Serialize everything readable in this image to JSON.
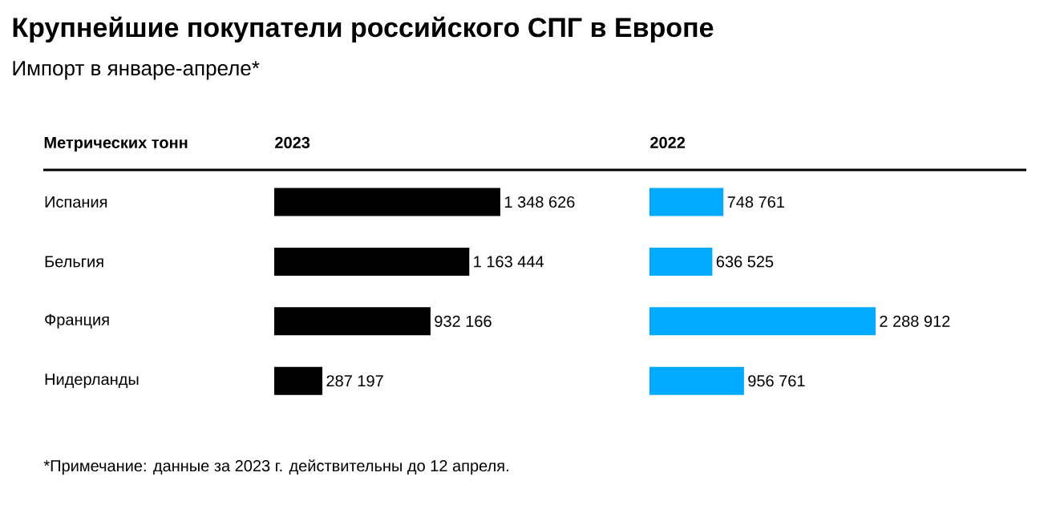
{
  "chart_data": [
    {
      "type": "other",
      "title": "Крупнейшие покупатели российского СПГ в Европе",
      "subtitle": "Импорт в январе-апреле*",
      "annotations": [
        "*Примечание: данные за 2023 г. действительны до 12 апреля."
      ]
    },
    {
      "type": "bar",
      "orientation": "horizontal",
      "title": "2023",
      "ylabel": "Метрических тонн",
      "categories": [
        "Испания",
        "Бельгия",
        "Франция",
        "Нидерланды"
      ],
      "color": "#000000",
      "values": [
        1348626,
        1163444,
        932166,
        287197
      ],
      "value_labels": [
        "1 348 626",
        "1 163 444",
        "932 166",
        "287 197"
      ],
      "tick_labels": "y"
    },
    {
      "type": "bar",
      "orientation": "horizontal",
      "title": "2022",
      "color": "#00aaff",
      "values": [
        748761,
        636525,
        2288912,
        956761
      ],
      "value_labels": [
        "748 761",
        "636 525",
        "2 288 912",
        "956 761"
      ],
      "tick_labels": false
    }
  ]
}
